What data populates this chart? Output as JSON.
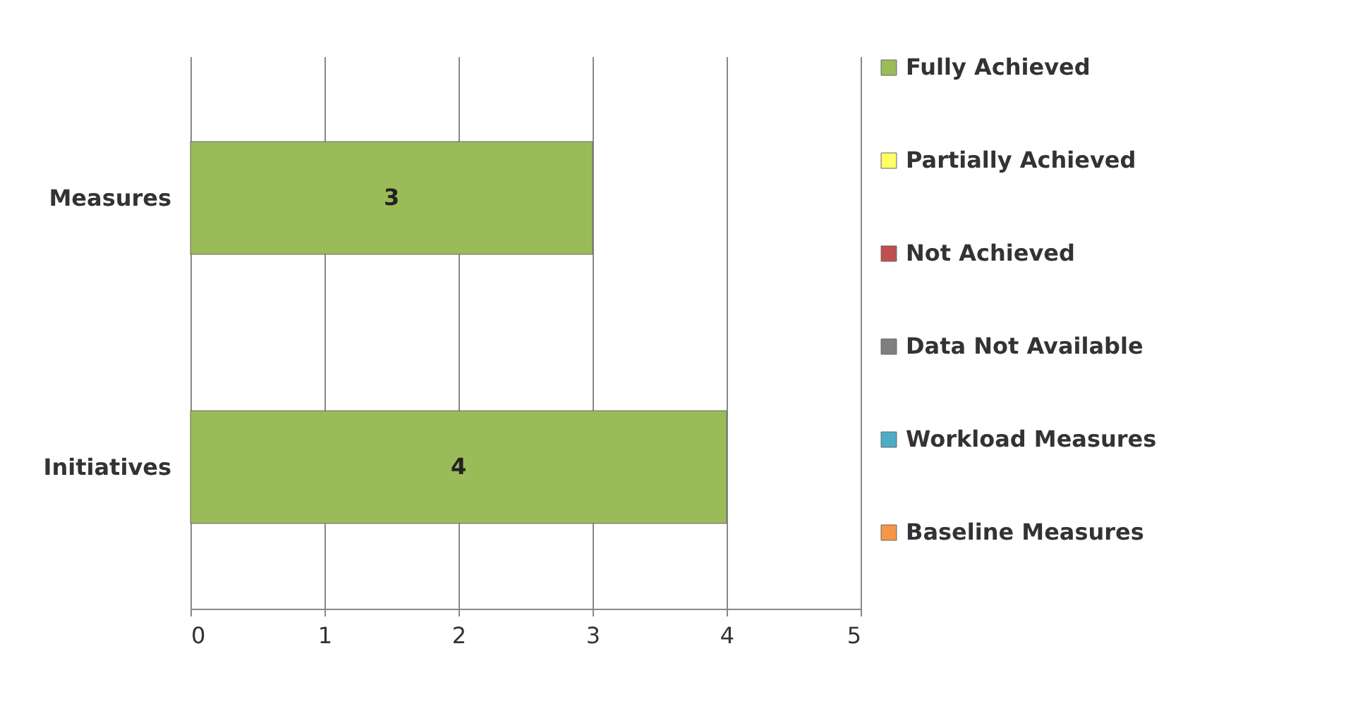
{
  "chart_data": {
    "type": "bar",
    "orientation": "horizontal",
    "categories": [
      "Measures",
      "Initiatives"
    ],
    "series": [
      {
        "name": "Fully Achieved",
        "color": "#9bbb59",
        "values": [
          3,
          4
        ]
      },
      {
        "name": "Partially Achieved",
        "color": "#ffff66",
        "values": [
          null,
          null
        ]
      },
      {
        "name": "Not Achieved",
        "color": "#c0504d",
        "values": [
          null,
          null
        ]
      },
      {
        "name": "Data Not Available",
        "color": "#7f7f7f",
        "values": [
          null,
          null
        ]
      },
      {
        "name": "Workload Measures",
        "color": "#4bacc6",
        "values": [
          null,
          null
        ]
      },
      {
        "name": "Baseline Measures",
        "color": "#f79646",
        "values": [
          null,
          null
        ]
      }
    ],
    "xlim": [
      0,
      5
    ],
    "xticks": [
      0,
      1,
      2,
      3,
      4,
      5
    ],
    "grid": "x",
    "legend": "right",
    "data_labels": true
  }
}
